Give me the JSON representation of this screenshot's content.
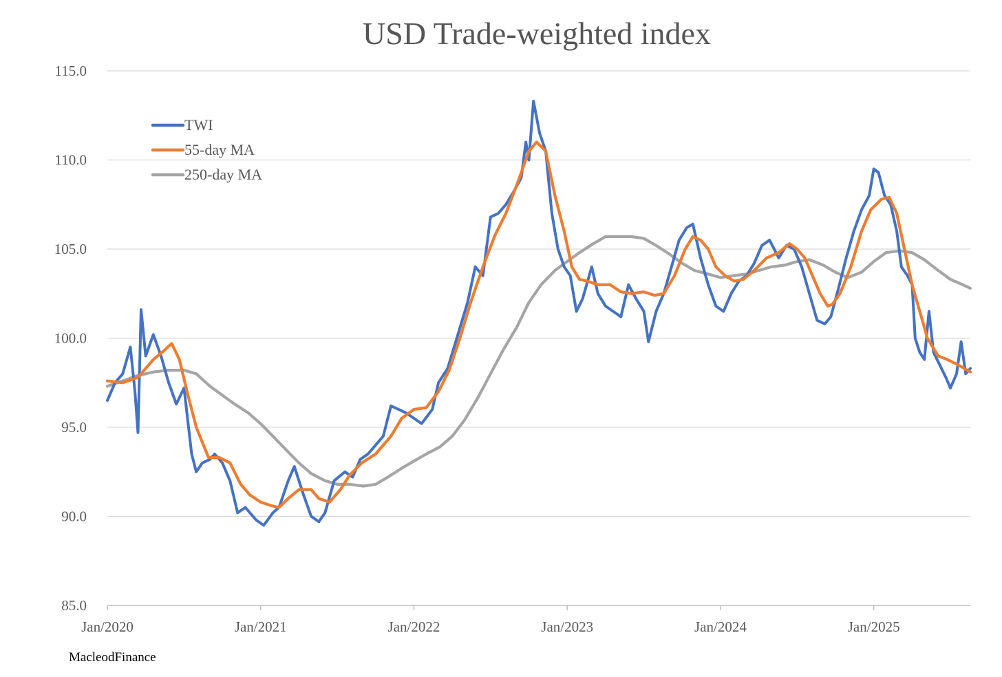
{
  "chart_data": {
    "type": "line",
    "title": "USD Trade-weighted index",
    "xlabel": "",
    "ylabel": "",
    "ylim": [
      85,
      115
    ],
    "yticks": [
      "85.0",
      "90.0",
      "95.0",
      "100.0",
      "105.0",
      "110.0",
      "115.0"
    ],
    "x_start": 2020.0,
    "x_end": 2025.63,
    "xticks": [
      {
        "label": "Jan/2020",
        "value": 2020
      },
      {
        "label": "Jan/2021",
        "value": 2021
      },
      {
        "label": "Jan/2022",
        "value": 2022
      },
      {
        "label": "Jan/2023",
        "value": 2023
      },
      {
        "label": "Jan/2024",
        "value": 2024
      },
      {
        "label": "Jan/2025",
        "value": 2025
      }
    ],
    "grid": true,
    "legend_position": "top-left",
    "series": [
      {
        "name": "TWI",
        "color": "#4472C4",
        "points": [
          [
            2020.0,
            96.5
          ],
          [
            2020.05,
            97.5
          ],
          [
            2020.1,
            98.0
          ],
          [
            2020.15,
            99.5
          ],
          [
            2020.18,
            97.0
          ],
          [
            2020.2,
            94.7
          ],
          [
            2020.22,
            101.6
          ],
          [
            2020.25,
            99.0
          ],
          [
            2020.3,
            100.2
          ],
          [
            2020.35,
            99.0
          ],
          [
            2020.4,
            97.5
          ],
          [
            2020.45,
            96.3
          ],
          [
            2020.5,
            97.2
          ],
          [
            2020.55,
            93.5
          ],
          [
            2020.58,
            92.5
          ],
          [
            2020.62,
            93.0
          ],
          [
            2020.67,
            93.2
          ],
          [
            2020.7,
            93.5
          ],
          [
            2020.75,
            93.0
          ],
          [
            2020.8,
            92.0
          ],
          [
            2020.85,
            90.2
          ],
          [
            2020.9,
            90.5
          ],
          [
            2020.97,
            89.8
          ],
          [
            2021.02,
            89.5
          ],
          [
            2021.08,
            90.2
          ],
          [
            2021.12,
            90.5
          ],
          [
            2021.18,
            92.0
          ],
          [
            2021.22,
            92.8
          ],
          [
            2021.28,
            91.2
          ],
          [
            2021.33,
            90.0
          ],
          [
            2021.38,
            89.7
          ],
          [
            2021.42,
            90.2
          ],
          [
            2021.48,
            92.0
          ],
          [
            2021.55,
            92.5
          ],
          [
            2021.6,
            92.2
          ],
          [
            2021.65,
            93.2
          ],
          [
            2021.7,
            93.5
          ],
          [
            2021.75,
            94.0
          ],
          [
            2021.8,
            94.5
          ],
          [
            2021.85,
            96.2
          ],
          [
            2021.9,
            96.0
          ],
          [
            2021.95,
            95.8
          ],
          [
            2022.0,
            95.5
          ],
          [
            2022.05,
            95.2
          ],
          [
            2022.12,
            96.0
          ],
          [
            2022.16,
            97.5
          ],
          [
            2022.22,
            98.3
          ],
          [
            2022.28,
            100.0
          ],
          [
            2022.35,
            102.0
          ],
          [
            2022.4,
            104.0
          ],
          [
            2022.45,
            103.5
          ],
          [
            2022.5,
            106.8
          ],
          [
            2022.55,
            107.0
          ],
          [
            2022.6,
            107.5
          ],
          [
            2022.65,
            108.2
          ],
          [
            2022.7,
            109.0
          ],
          [
            2022.73,
            111.0
          ],
          [
            2022.75,
            110.0
          ],
          [
            2022.78,
            113.3
          ],
          [
            2022.82,
            111.5
          ],
          [
            2022.86,
            110.5
          ],
          [
            2022.9,
            107.0
          ],
          [
            2022.94,
            105.0
          ],
          [
            2022.98,
            104.0
          ],
          [
            2023.02,
            103.5
          ],
          [
            2023.06,
            101.5
          ],
          [
            2023.1,
            102.2
          ],
          [
            2023.16,
            104.0
          ],
          [
            2023.2,
            102.5
          ],
          [
            2023.25,
            101.8
          ],
          [
            2023.3,
            101.5
          ],
          [
            2023.35,
            101.2
          ],
          [
            2023.4,
            103.0
          ],
          [
            2023.45,
            102.2
          ],
          [
            2023.5,
            101.5
          ],
          [
            2023.53,
            99.8
          ],
          [
            2023.58,
            101.5
          ],
          [
            2023.63,
            102.5
          ],
          [
            2023.68,
            104.0
          ],
          [
            2023.73,
            105.5
          ],
          [
            2023.78,
            106.2
          ],
          [
            2023.82,
            106.4
          ],
          [
            2023.87,
            104.5
          ],
          [
            2023.92,
            103.0
          ],
          [
            2023.97,
            101.8
          ],
          [
            2024.02,
            101.5
          ],
          [
            2024.07,
            102.5
          ],
          [
            2024.12,
            103.2
          ],
          [
            2024.17,
            103.5
          ],
          [
            2024.22,
            104.2
          ],
          [
            2024.27,
            105.2
          ],
          [
            2024.32,
            105.5
          ],
          [
            2024.38,
            104.5
          ],
          [
            2024.43,
            105.2
          ],
          [
            2024.48,
            105.0
          ],
          [
            2024.53,
            104.0
          ],
          [
            2024.58,
            102.5
          ],
          [
            2024.63,
            101.0
          ],
          [
            2024.68,
            100.8
          ],
          [
            2024.72,
            101.2
          ],
          [
            2024.77,
            102.8
          ],
          [
            2024.82,
            104.5
          ],
          [
            2024.87,
            106.0
          ],
          [
            2024.92,
            107.2
          ],
          [
            2024.97,
            108.0
          ],
          [
            2025.0,
            109.5
          ],
          [
            2025.03,
            109.3
          ],
          [
            2025.07,
            108.0
          ],
          [
            2025.11,
            107.5
          ],
          [
            2025.15,
            106.0
          ],
          [
            2025.18,
            104.0
          ],
          [
            2025.22,
            103.5
          ],
          [
            2025.25,
            103.0
          ],
          [
            2025.27,
            100.0
          ],
          [
            2025.3,
            99.2
          ],
          [
            2025.33,
            98.8
          ],
          [
            2025.36,
            101.5
          ],
          [
            2025.39,
            99.2
          ],
          [
            2025.43,
            98.5
          ],
          [
            2025.47,
            97.8
          ],
          [
            2025.5,
            97.2
          ],
          [
            2025.54,
            98.0
          ],
          [
            2025.57,
            99.8
          ],
          [
            2025.6,
            98.0
          ],
          [
            2025.63,
            98.3
          ]
        ]
      },
      {
        "name": "55-day MA",
        "color": "#ED7D31",
        "points": [
          [
            2020.0,
            97.6
          ],
          [
            2020.1,
            97.5
          ],
          [
            2020.2,
            97.8
          ],
          [
            2020.3,
            98.8
          ],
          [
            2020.37,
            99.3
          ],
          [
            2020.42,
            99.7
          ],
          [
            2020.47,
            98.8
          ],
          [
            2020.52,
            97.0
          ],
          [
            2020.58,
            95.0
          ],
          [
            2020.66,
            93.3
          ],
          [
            2020.73,
            93.3
          ],
          [
            2020.8,
            93.0
          ],
          [
            2020.87,
            91.8
          ],
          [
            2020.93,
            91.2
          ],
          [
            2021.0,
            90.8
          ],
          [
            2021.07,
            90.6
          ],
          [
            2021.12,
            90.5
          ],
          [
            2021.18,
            91.0
          ],
          [
            2021.25,
            91.5
          ],
          [
            2021.33,
            91.5
          ],
          [
            2021.38,
            91.0
          ],
          [
            2021.45,
            90.8
          ],
          [
            2021.52,
            91.5
          ],
          [
            2021.58,
            92.3
          ],
          [
            2021.66,
            93.0
          ],
          [
            2021.75,
            93.5
          ],
          [
            2021.85,
            94.5
          ],
          [
            2021.92,
            95.5
          ],
          [
            2022.0,
            96.0
          ],
          [
            2022.08,
            96.1
          ],
          [
            2022.16,
            97.0
          ],
          [
            2022.23,
            98.2
          ],
          [
            2022.3,
            100.0
          ],
          [
            2022.37,
            102.0
          ],
          [
            2022.45,
            104.0
          ],
          [
            2022.53,
            105.8
          ],
          [
            2022.6,
            107.0
          ],
          [
            2022.68,
            108.8
          ],
          [
            2022.75,
            110.5
          ],
          [
            2022.8,
            111.0
          ],
          [
            2022.86,
            110.5
          ],
          [
            2022.92,
            108.0
          ],
          [
            2022.98,
            106.0
          ],
          [
            2023.03,
            104.0
          ],
          [
            2023.08,
            103.3
          ],
          [
            2023.13,
            103.2
          ],
          [
            2023.2,
            103.0
          ],
          [
            2023.28,
            103.0
          ],
          [
            2023.35,
            102.6
          ],
          [
            2023.42,
            102.5
          ],
          [
            2023.5,
            102.6
          ],
          [
            2023.57,
            102.4
          ],
          [
            2023.63,
            102.5
          ],
          [
            2023.7,
            103.5
          ],
          [
            2023.77,
            105.0
          ],
          [
            2023.82,
            105.7
          ],
          [
            2023.87,
            105.5
          ],
          [
            2023.92,
            105.0
          ],
          [
            2023.97,
            104.0
          ],
          [
            2024.03,
            103.5
          ],
          [
            2024.09,
            103.2
          ],
          [
            2024.15,
            103.3
          ],
          [
            2024.22,
            103.8
          ],
          [
            2024.3,
            104.5
          ],
          [
            2024.38,
            104.8
          ],
          [
            2024.45,
            105.3
          ],
          [
            2024.5,
            105.0
          ],
          [
            2024.55,
            104.5
          ],
          [
            2024.6,
            103.5
          ],
          [
            2024.65,
            102.5
          ],
          [
            2024.7,
            101.8
          ],
          [
            2024.73,
            101.9
          ],
          [
            2024.78,
            102.5
          ],
          [
            2024.85,
            104.0
          ],
          [
            2024.92,
            106.0
          ],
          [
            2024.98,
            107.2
          ],
          [
            2025.05,
            107.8
          ],
          [
            2025.1,
            107.9
          ],
          [
            2025.15,
            107.0
          ],
          [
            2025.2,
            105.0
          ],
          [
            2025.25,
            103.0
          ],
          [
            2025.3,
            101.5
          ],
          [
            2025.35,
            100.0
          ],
          [
            2025.42,
            99.0
          ],
          [
            2025.48,
            98.8
          ],
          [
            2025.55,
            98.5
          ],
          [
            2025.63,
            98.1
          ]
        ]
      },
      {
        "name": "250-day MA",
        "color": "#A5A5A5",
        "points": [
          [
            2020.0,
            97.3
          ],
          [
            2020.1,
            97.6
          ],
          [
            2020.2,
            97.9
          ],
          [
            2020.3,
            98.1
          ],
          [
            2020.4,
            98.2
          ],
          [
            2020.5,
            98.2
          ],
          [
            2020.58,
            98.0
          ],
          [
            2020.67,
            97.3
          ],
          [
            2020.75,
            96.8
          ],
          [
            2020.83,
            96.3
          ],
          [
            2020.92,
            95.8
          ],
          [
            2021.0,
            95.2
          ],
          [
            2021.08,
            94.5
          ],
          [
            2021.17,
            93.7
          ],
          [
            2021.25,
            93.0
          ],
          [
            2021.33,
            92.4
          ],
          [
            2021.42,
            92.0
          ],
          [
            2021.5,
            91.8
          ],
          [
            2021.58,
            91.8
          ],
          [
            2021.67,
            91.7
          ],
          [
            2021.75,
            91.8
          ],
          [
            2021.83,
            92.2
          ],
          [
            2021.92,
            92.7
          ],
          [
            2022.0,
            93.1
          ],
          [
            2022.08,
            93.5
          ],
          [
            2022.17,
            93.9
          ],
          [
            2022.25,
            94.5
          ],
          [
            2022.33,
            95.4
          ],
          [
            2022.42,
            96.7
          ],
          [
            2022.5,
            98.0
          ],
          [
            2022.58,
            99.3
          ],
          [
            2022.67,
            100.6
          ],
          [
            2022.75,
            102.0
          ],
          [
            2022.83,
            103.0
          ],
          [
            2022.92,
            103.8
          ],
          [
            2023.0,
            104.3
          ],
          [
            2023.08,
            104.8
          ],
          [
            2023.17,
            105.3
          ],
          [
            2023.25,
            105.7
          ],
          [
            2023.33,
            105.7
          ],
          [
            2023.42,
            105.7
          ],
          [
            2023.5,
            105.6
          ],
          [
            2023.58,
            105.2
          ],
          [
            2023.67,
            104.7
          ],
          [
            2023.75,
            104.2
          ],
          [
            2023.83,
            103.8
          ],
          [
            2023.92,
            103.6
          ],
          [
            2024.0,
            103.4
          ],
          [
            2024.08,
            103.5
          ],
          [
            2024.17,
            103.6
          ],
          [
            2024.25,
            103.8
          ],
          [
            2024.33,
            104.0
          ],
          [
            2024.42,
            104.1
          ],
          [
            2024.5,
            104.3
          ],
          [
            2024.58,
            104.4
          ],
          [
            2024.67,
            104.1
          ],
          [
            2024.75,
            103.7
          ],
          [
            2024.83,
            103.4
          ],
          [
            2024.92,
            103.7
          ],
          [
            2025.0,
            104.3
          ],
          [
            2025.08,
            104.8
          ],
          [
            2025.17,
            104.9
          ],
          [
            2025.25,
            104.8
          ],
          [
            2025.33,
            104.4
          ],
          [
            2025.42,
            103.8
          ],
          [
            2025.5,
            103.3
          ],
          [
            2025.58,
            103.0
          ],
          [
            2025.63,
            102.8
          ]
        ]
      }
    ],
    "source_note": "MacleodFinance"
  }
}
